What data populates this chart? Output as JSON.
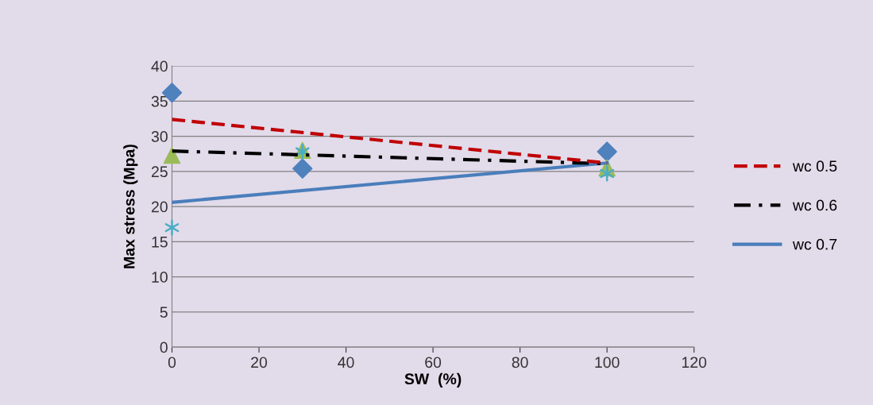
{
  "chart_data": {
    "type": "scatter",
    "xlabel": "SW  (%)",
    "ylabel": "Max stress (Mpa)",
    "xlim": [
      0,
      120
    ],
    "xticks": [
      0,
      20,
      40,
      60,
      80,
      100,
      120
    ],
    "ylim": [
      0,
      40
    ],
    "yticks": [
      0,
      5,
      10,
      15,
      20,
      25,
      30,
      35,
      40
    ],
    "grid": "y",
    "legend": "right",
    "series": [
      {
        "marker": "diamond",
        "color": "#4f81bd",
        "x": [
          0,
          30,
          100
        ],
        "values": [
          36.2,
          25.4,
          27.8
        ]
      },
      {
        "marker": "triangle",
        "color": "#9bbb59",
        "x": [
          0,
          30,
          100
        ],
        "values": [
          27.3,
          28.0,
          25.5
        ]
      },
      {
        "marker": "cross",
        "color": "#4bacc6",
        "x": [
          0,
          30,
          100
        ],
        "values": [
          17.0,
          27.8,
          24.7
        ]
      },
      {
        "type": "line",
        "name": "wc 0.5",
        "line_style": "dashed",
        "color": "#c00000",
        "x": [
          0,
          100
        ],
        "values": [
          32.4,
          26.2
        ]
      },
      {
        "type": "line",
        "name": "wc 0.6",
        "line_style": "dashdot",
        "color": "#000000",
        "x": [
          0,
          100
        ],
        "values": [
          27.9,
          26.1
        ]
      },
      {
        "type": "line",
        "name": "wc 0.7",
        "line_style": "solid",
        "color": "#4a7ebb",
        "x": [
          0,
          100
        ],
        "values": [
          20.6,
          26.2
        ]
      }
    ]
  }
}
